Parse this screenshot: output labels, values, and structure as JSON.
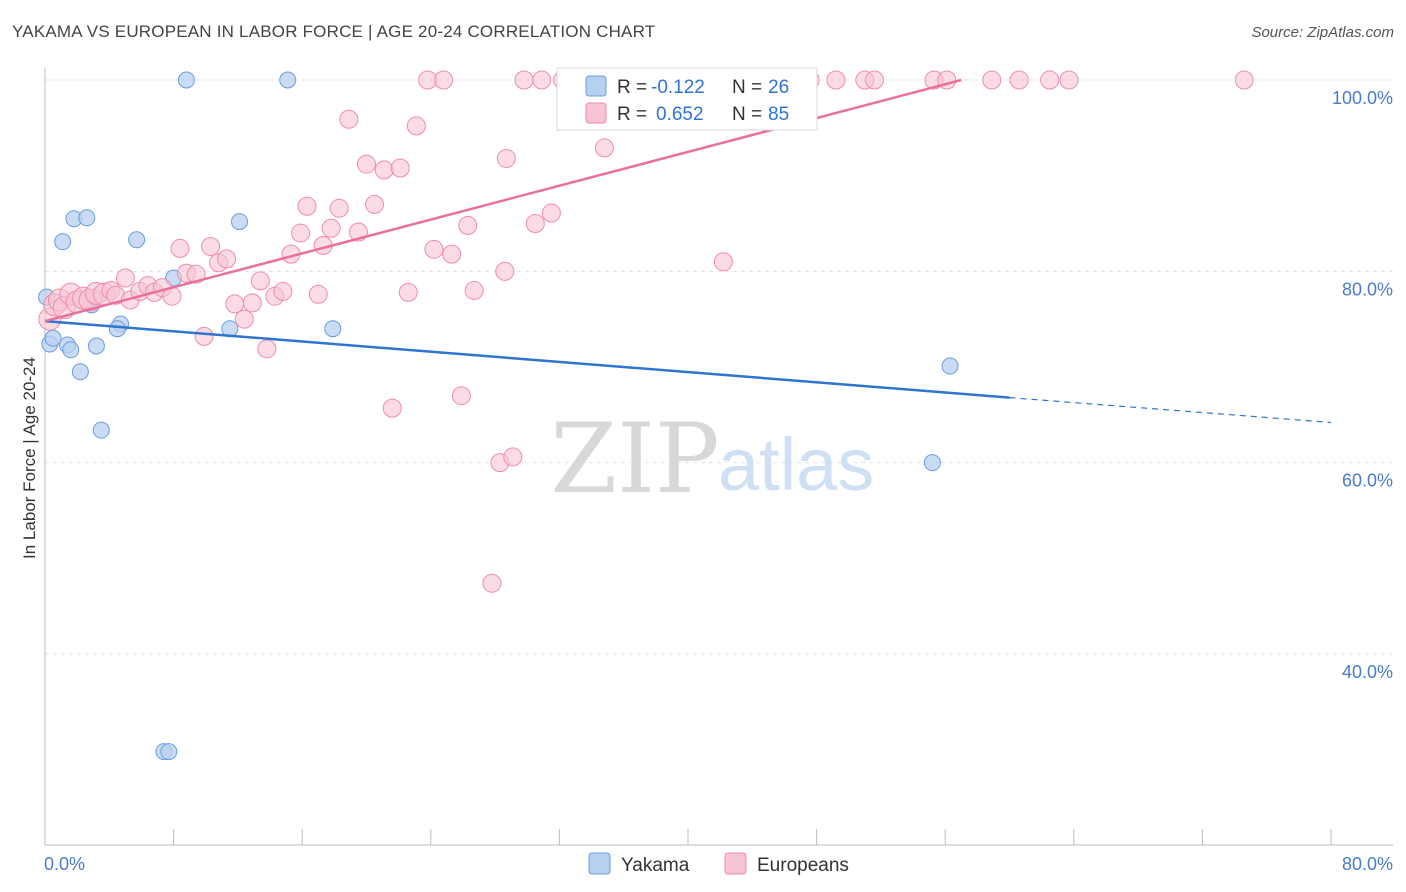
{
  "header": {
    "title": "YAKAMA VS EUROPEAN IN LABOR FORCE | AGE 20-24 CORRELATION CHART",
    "source": "Source: ZipAtlas.com"
  },
  "watermark": {
    "zip": "ZIP",
    "atlas": "atlas"
  },
  "colors": {
    "yakama": "#6a9ce0",
    "yakama_fill": "#b8d0f0",
    "yakama_line": "#2e74d0",
    "europeans": "#f08cab",
    "europeans_fill": "#f8c4d4",
    "europeans_line": "#e8709a",
    "tick_text": "#4a7cc9"
  },
  "legend_box": {
    "rows": [
      {
        "r_label": "R =",
        "r_value": "-0.122",
        "n_label": "N =",
        "n_value": "26"
      },
      {
        "r_label": "R =",
        "r_value": "0.652",
        "n_label": "N =",
        "n_value": "85"
      }
    ]
  },
  "chart_data": {
    "type": "scatter",
    "title": "YAKAMA VS EUROPEAN IN LABOR FORCE | AGE 20-24 CORRELATION CHART",
    "ylabel": "In Labor Force | Age 20-24",
    "xlabel": "",
    "xlim": [
      0,
      80
    ],
    "ylim": [
      20,
      100
    ],
    "x_tick_labels": [
      "0.0%",
      "80.0%"
    ],
    "y_ticks": [
      {
        "value": 100,
        "label": "100.0%"
      },
      {
        "value": 80,
        "label": "80.0%"
      },
      {
        "value": 60,
        "label": "60.0%"
      },
      {
        "value": 40,
        "label": "40.0%"
      }
    ],
    "grid": true,
    "legend_position": "bottom",
    "series": [
      {
        "name": "Yakama",
        "R": -0.122,
        "N": 26,
        "trend": {
          "x": [
            0,
            60
          ],
          "y": [
            74.8,
            66.8
          ],
          "dashed_to": [
            80,
            64.2
          ]
        },
        "points": [
          [
            0.1,
            77.3
          ],
          [
            0.3,
            72.4
          ],
          [
            0.5,
            73.0
          ],
          [
            1.1,
            83.1
          ],
          [
            1.4,
            72.3
          ],
          [
            1.6,
            71.8
          ],
          [
            1.8,
            85.5
          ],
          [
            2.2,
            69.5
          ],
          [
            2.6,
            85.6
          ],
          [
            2.9,
            76.5
          ],
          [
            3.1,
            77.3
          ],
          [
            3.2,
            72.2
          ],
          [
            3.5,
            63.4
          ],
          [
            4.7,
            74.5
          ],
          [
            4.5,
            74.0
          ],
          [
            5.7,
            83.3
          ],
          [
            7.4,
            29.8
          ],
          [
            7.7,
            29.8
          ],
          [
            8.0,
            79.3
          ],
          [
            8.8,
            100.0
          ],
          [
            11.5,
            74.0
          ],
          [
            12.1,
            85.2
          ],
          [
            15.1,
            100.0
          ],
          [
            17.9,
            74.0
          ],
          [
            55.2,
            60.0
          ],
          [
            56.3,
            70.1
          ]
        ]
      },
      {
        "name": "Europeans",
        "R": 0.652,
        "N": 85,
        "trend": {
          "x": [
            0,
            57
          ],
          "y": [
            74.8,
            100.0
          ]
        },
        "points": [
          [
            0.3,
            75.0
          ],
          [
            0.6,
            76.5
          ],
          [
            0.9,
            77.0
          ],
          [
            1.2,
            76.2
          ],
          [
            1.6,
            77.6
          ],
          [
            2.0,
            76.8
          ],
          [
            2.4,
            77.2
          ],
          [
            2.8,
            77.0
          ],
          [
            3.2,
            77.7
          ],
          [
            3.7,
            77.6
          ],
          [
            4.1,
            78.0
          ],
          [
            4.4,
            77.5
          ],
          [
            5.0,
            79.3
          ],
          [
            5.3,
            77.0
          ],
          [
            5.9,
            77.9
          ],
          [
            6.4,
            78.5
          ],
          [
            6.8,
            77.8
          ],
          [
            7.3,
            78.3
          ],
          [
            7.9,
            77.4
          ],
          [
            8.4,
            82.4
          ],
          [
            8.8,
            79.8
          ],
          [
            9.4,
            79.7
          ],
          [
            9.9,
            73.2
          ],
          [
            10.3,
            82.6
          ],
          [
            10.8,
            80.9
          ],
          [
            11.3,
            81.3
          ],
          [
            11.8,
            76.6
          ],
          [
            12.4,
            75.0
          ],
          [
            12.9,
            76.7
          ],
          [
            13.4,
            79.0
          ],
          [
            13.8,
            71.9
          ],
          [
            14.3,
            77.4
          ],
          [
            14.8,
            77.9
          ],
          [
            15.3,
            81.8
          ],
          [
            15.9,
            84.0
          ],
          [
            16.3,
            86.8
          ],
          [
            17.0,
            77.6
          ],
          [
            17.3,
            82.7
          ],
          [
            17.8,
            84.5
          ],
          [
            18.3,
            86.6
          ],
          [
            18.9,
            95.9
          ],
          [
            19.5,
            84.1
          ],
          [
            20.0,
            91.2
          ],
          [
            20.5,
            87.0
          ],
          [
            21.1,
            90.6
          ],
          [
            21.6,
            65.7
          ],
          [
            22.1,
            90.8
          ],
          [
            22.6,
            77.8
          ],
          [
            23.1,
            95.2
          ],
          [
            23.8,
            100.0
          ],
          [
            24.2,
            82.3
          ],
          [
            24.8,
            100.0
          ],
          [
            25.3,
            81.8
          ],
          [
            25.9,
            67.0
          ],
          [
            26.3,
            84.8
          ],
          [
            26.7,
            78.0
          ],
          [
            27.8,
            47.4
          ],
          [
            28.3,
            60.0
          ],
          [
            28.6,
            80.0
          ],
          [
            28.7,
            91.8
          ],
          [
            29.1,
            60.6
          ],
          [
            29.8,
            100.0
          ],
          [
            30.5,
            85.0
          ],
          [
            30.9,
            100.0
          ],
          [
            31.5,
            86.1
          ],
          [
            32.2,
            100.0
          ],
          [
            34.3,
            100.0
          ],
          [
            34.8,
            92.9
          ],
          [
            36.0,
            100.0
          ],
          [
            37.2,
            100.0
          ],
          [
            39.5,
            100.0
          ],
          [
            41.8,
            100.0
          ],
          [
            42.2,
            81.0
          ],
          [
            44.8,
            100.0
          ],
          [
            47.6,
            100.0
          ],
          [
            49.2,
            100.0
          ],
          [
            51.0,
            100.0
          ],
          [
            51.6,
            100.0
          ],
          [
            55.3,
            100.0
          ],
          [
            56.1,
            100.0
          ],
          [
            58.9,
            100.0
          ],
          [
            60.6,
            100.0
          ],
          [
            62.5,
            100.0
          ],
          [
            63.7,
            100.0
          ],
          [
            74.6,
            100.0
          ]
        ]
      }
    ]
  },
  "bottom_legend": [
    {
      "label": "Yakama"
    },
    {
      "label": "Europeans"
    }
  ]
}
